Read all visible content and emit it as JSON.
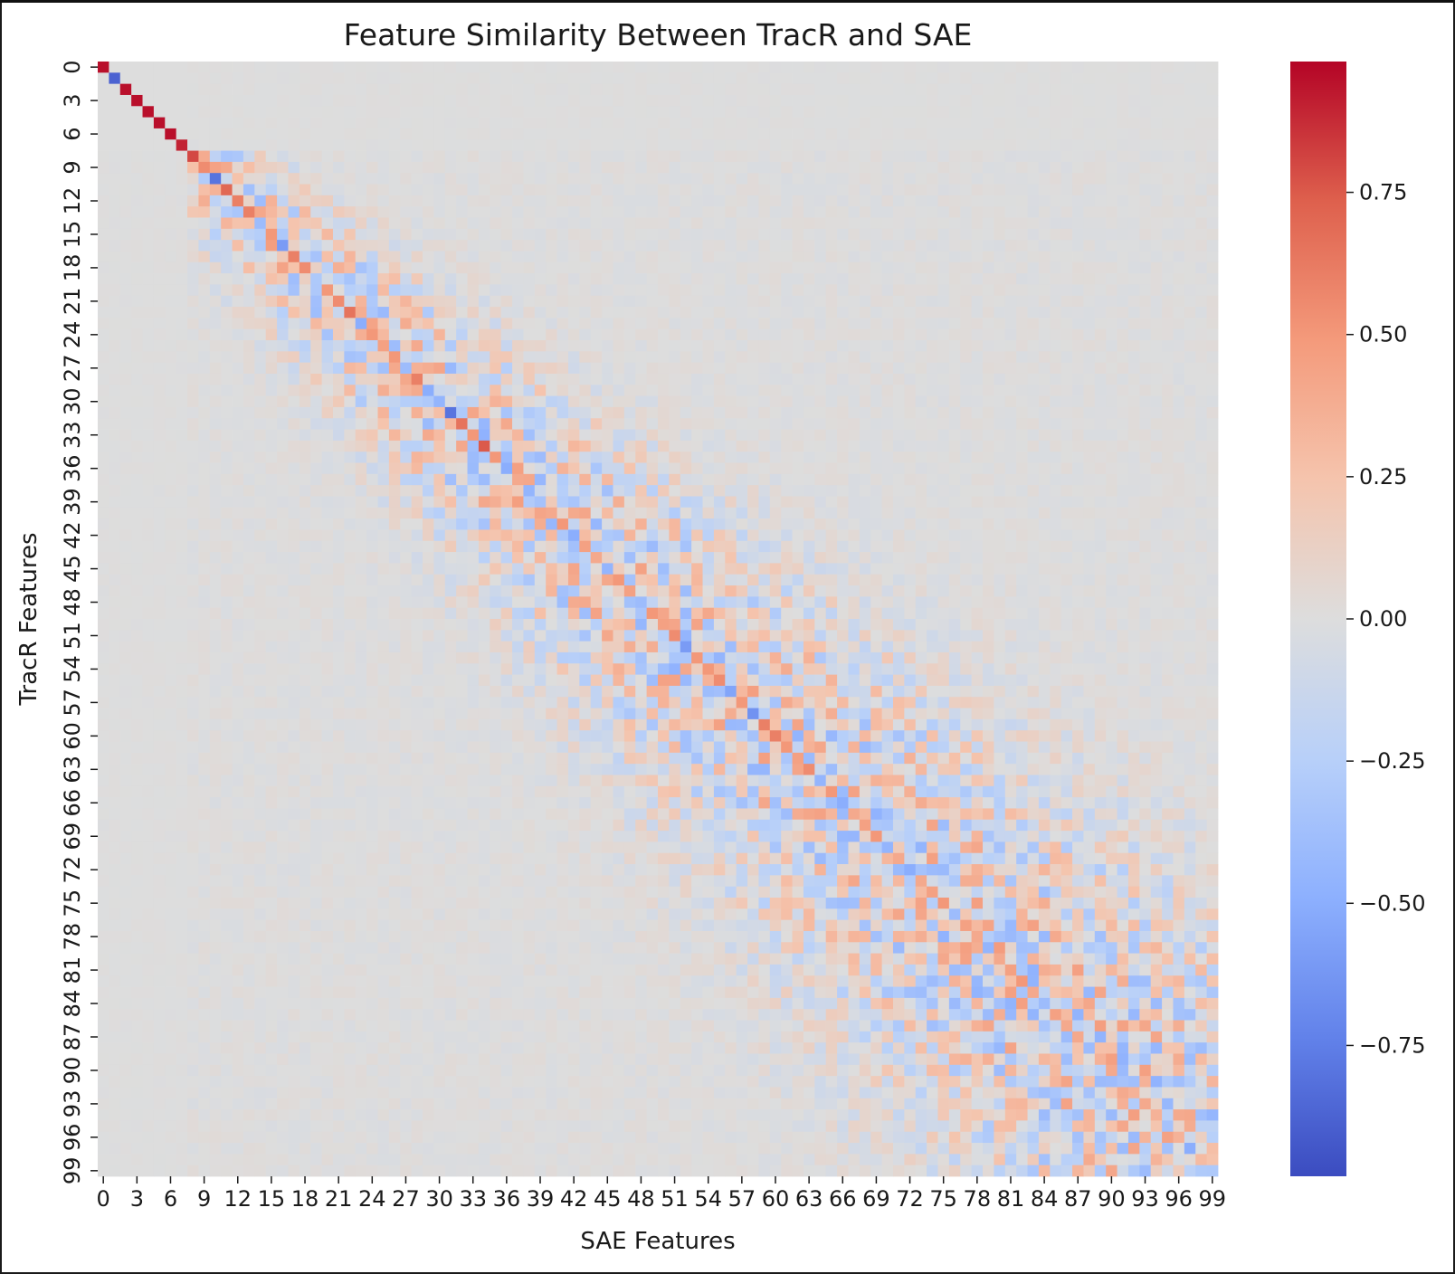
{
  "chart_data": {
    "type": "heatmap",
    "title": "Feature Similarity Between TracR and SAE",
    "xlabel": "SAE Features",
    "ylabel": "TracR Features",
    "n_rows": 100,
    "n_cols": 100,
    "x_ticks": [
      0,
      3,
      6,
      9,
      12,
      15,
      18,
      21,
      24,
      27,
      30,
      33,
      36,
      39,
      42,
      45,
      48,
      51,
      54,
      57,
      60,
      63,
      66,
      69,
      72,
      75,
      78,
      81,
      84,
      87,
      90,
      93,
      96,
      99
    ],
    "y_ticks": [
      0,
      3,
      6,
      9,
      12,
      15,
      18,
      21,
      24,
      27,
      30,
      33,
      36,
      39,
      42,
      45,
      48,
      51,
      54,
      57,
      60,
      63,
      66,
      69,
      72,
      75,
      78,
      81,
      84,
      87,
      90,
      93,
      96,
      99
    ],
    "colorbar": {
      "colormap": "coolwarm",
      "vmin": -0.98,
      "vmax": 0.98,
      "ticks": [
        0.75,
        0.5,
        0.25,
        0.0,
        -0.25,
        -0.5,
        -0.75
      ],
      "tick_labels": [
        "0.75",
        "0.50",
        "0.25",
        "0.00",
        "−0.25",
        "−0.50",
        "−0.75"
      ]
    },
    "diagonal_values": [
      0.95,
      -0.88,
      0.95,
      0.95,
      0.95,
      0.95,
      0.95,
      0.9,
      0.8,
      0.55,
      -0.8,
      0.7,
      0.6,
      0.6,
      -0.4,
      0.5,
      -0.6,
      0.6,
      0.55,
      -0.3,
      0.5,
      0.55,
      0.65,
      -0.5,
      0.5,
      0.45,
      0.5,
      -0.4,
      0.6,
      -0.5,
      -0.45,
      -0.8,
      0.65,
      0.5,
      0.75,
      0.5,
      -0.5,
      0.4,
      -0.45,
      -0.35,
      0.4,
      0.5,
      -0.5,
      0.45,
      0.4,
      -0.45,
      0.5,
      0.45,
      -0.4,
      0.5,
      0.45,
      0.55,
      -0.6,
      0.5,
      0.5,
      0.55,
      -0.55,
      0.5,
      -0.65,
      0.6,
      0.6,
      0.5,
      0.45,
      0.55,
      -0.45,
      0.5,
      -0.5,
      0.4,
      0.45,
      0.5,
      -0.45,
      0.4,
      -0.5,
      0.4,
      0.45,
      0.5,
      -0.4,
      0.45,
      0.4,
      -0.45,
      0.4,
      0.45,
      0.5,
      0.4,
      -0.4,
      0.45,
      0.4,
      0.4,
      -0.4,
      0.35,
      0.4,
      -0.35,
      0.35,
      0.4,
      0.35,
      -0.35,
      0.35,
      -0.5,
      0.3,
      -0.3
    ],
    "off_diagonal": {
      "note_value_range": [
        -0.5,
        0.5
      ],
      "band_width_rows_0_9": 0,
      "band_width_typical": 12
    }
  }
}
